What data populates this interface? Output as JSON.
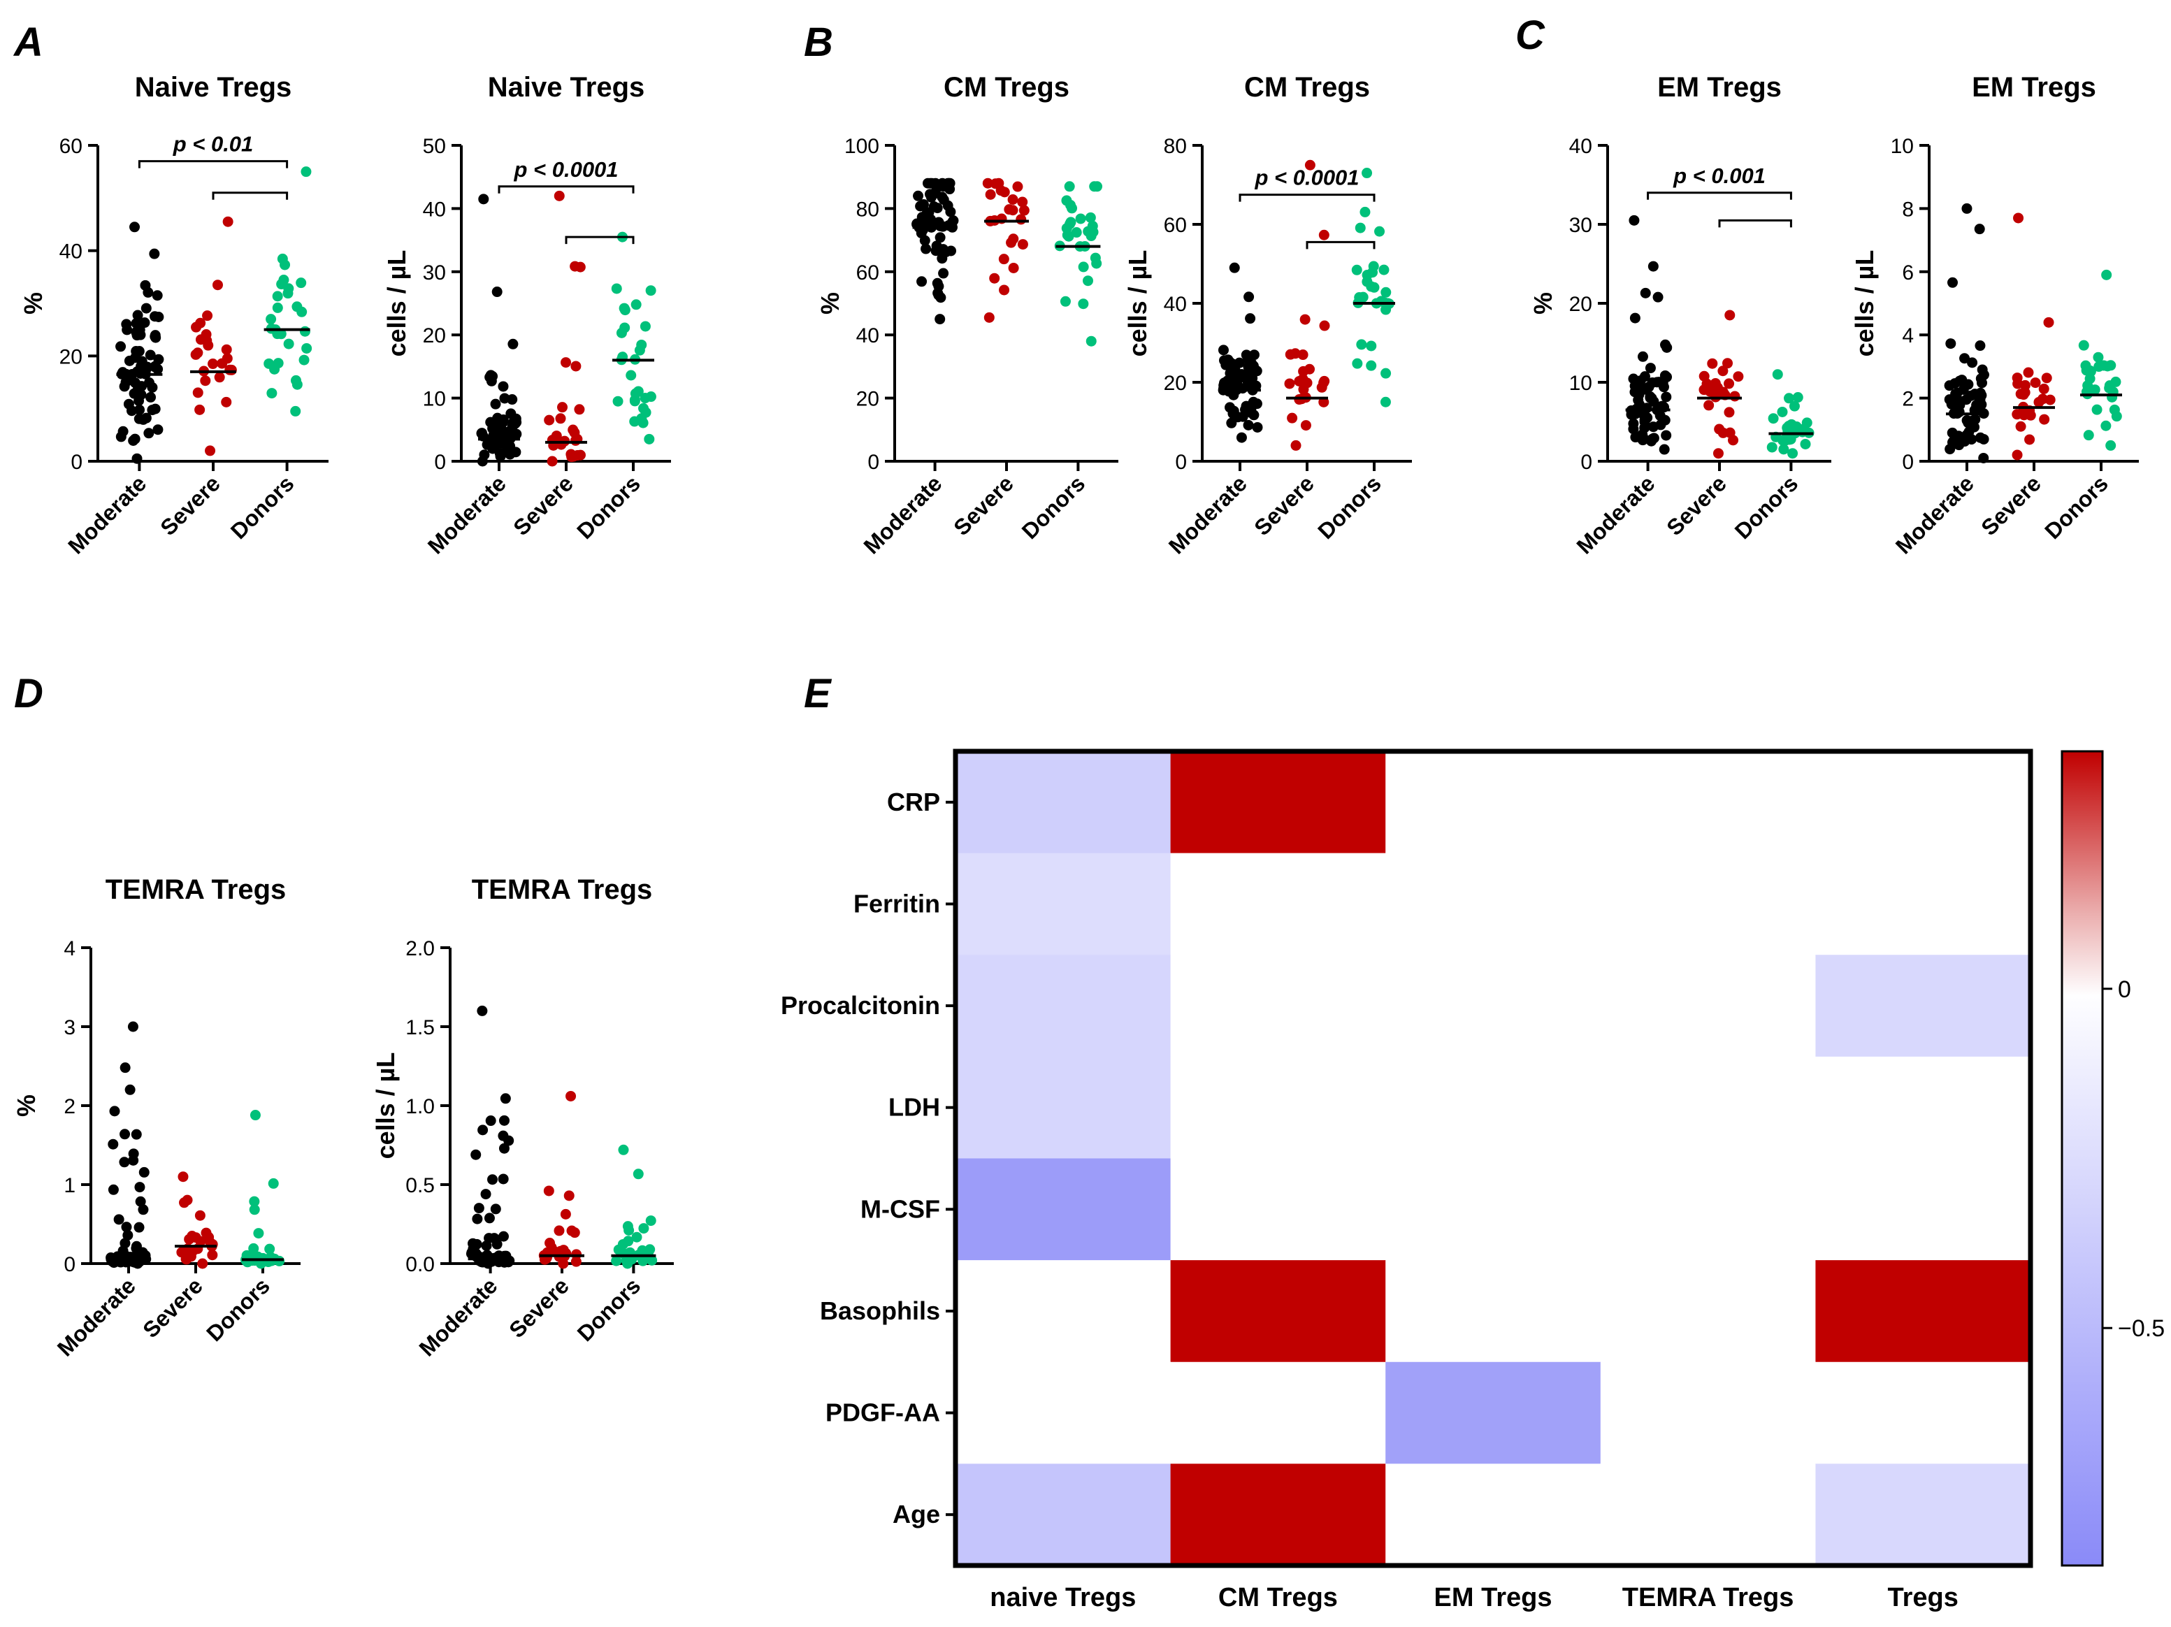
{
  "panel_labels": [
    "A",
    "B",
    "C",
    "D",
    "E"
  ],
  "colors": {
    "moderate": "#000000",
    "severe": "#c00000",
    "donors": "#00c07a",
    "heat_pos": "#c00000",
    "heat_neg": "#8a8af8",
    "heat_zero": "#ffffff"
  },
  "chart_data": [
    {
      "type": "scatter",
      "panel": "A",
      "title": "Naive Tregs",
      "ylabel": "%",
      "ylim": [
        0,
        60
      ],
      "yticks": [
        0,
        20,
        40,
        60
      ],
      "categories": [
        "Moderate",
        "Severe",
        "Donors"
      ],
      "series": [
        {
          "name": "Moderate",
          "median": 16.5,
          "min": 0.5,
          "max": 44.5,
          "n": 70
        },
        {
          "name": "Severe",
          "median": 17,
          "min": 2,
          "max": 45.5,
          "n": 24
        },
        {
          "name": "Donors",
          "median": 25,
          "min": 9.5,
          "max": 55,
          "n": 28
        }
      ],
      "brackets": [
        {
          "from": 0,
          "to": 2,
          "y": 57,
          "label": "p < 0.01"
        },
        {
          "from": 1,
          "to": 2,
          "y": 51,
          "label": ""
        }
      ]
    },
    {
      "type": "scatter",
      "panel": "A",
      "title": "Naive Tregs",
      "ylabel": "cells / µL",
      "ylim": [
        0,
        50
      ],
      "yticks": [
        0,
        10,
        20,
        30,
        40,
        50
      ],
      "categories": [
        "Moderate",
        "Severe",
        "Donors"
      ],
      "series": [
        {
          "name": "Moderate",
          "median": 3.5,
          "min": 0,
          "max": 41.5,
          "n": 70
        },
        {
          "name": "Severe",
          "median": 3,
          "min": 0,
          "max": 42,
          "n": 24
        },
        {
          "name": "Donors",
          "median": 16,
          "min": 3.5,
          "max": 35.5,
          "n": 28
        }
      ],
      "brackets": [
        {
          "from": 0,
          "to": 2,
          "y": 43.5,
          "label": "p < 0.0001"
        },
        {
          "from": 1,
          "to": 2,
          "y": 35.5,
          "label": ""
        }
      ]
    },
    {
      "type": "scatter",
      "panel": "B",
      "title": "CM Tregs",
      "ylabel": "%",
      "ylim": [
        0,
        100
      ],
      "yticks": [
        0,
        20,
        40,
        60,
        80,
        100
      ],
      "categories": [
        "Moderate",
        "Severe",
        "Donors"
      ],
      "series": [
        {
          "name": "Moderate",
          "median": 74,
          "min": 45,
          "max": 88,
          "n": 70
        },
        {
          "name": "Severe",
          "median": 76,
          "min": 45.5,
          "max": 88,
          "n": 24
        },
        {
          "name": "Donors",
          "median": 68,
          "min": 38,
          "max": 87,
          "n": 28
        }
      ],
      "brackets": []
    },
    {
      "type": "scatter",
      "panel": "B",
      "title": "CM Tregs",
      "ylabel": "cells / µL",
      "ylim": [
        0,
        80
      ],
      "yticks": [
        0,
        20,
        40,
        60,
        80
      ],
      "categories": [
        "Moderate",
        "Severe",
        "Donors"
      ],
      "series": [
        {
          "name": "Moderate",
          "median": 18,
          "min": 6,
          "max": 49,
          "n": 70
        },
        {
          "name": "Severe",
          "median": 16,
          "min": 4,
          "max": 75,
          "n": 24
        },
        {
          "name": "Donors",
          "median": 40,
          "min": 15,
          "max": 73,
          "n": 28
        }
      ],
      "brackets": [
        {
          "from": 0,
          "to": 2,
          "y": 67.5,
          "label": "p < 0.0001"
        },
        {
          "from": 1,
          "to": 2,
          "y": 55.5,
          "label": ""
        }
      ]
    },
    {
      "type": "scatter",
      "panel": "C",
      "title": "EM Tregs",
      "ylabel": "%",
      "ylim": [
        0,
        40
      ],
      "yticks": [
        0,
        10,
        20,
        30,
        40
      ],
      "categories": [
        "Moderate",
        "Severe",
        "Donors"
      ],
      "series": [
        {
          "name": "Moderate",
          "median": 6.5,
          "min": 1.5,
          "max": 30.5,
          "n": 70
        },
        {
          "name": "Severe",
          "median": 8,
          "min": 1,
          "max": 18.5,
          "n": 24
        },
        {
          "name": "Donors",
          "median": 3.5,
          "min": 1,
          "max": 11,
          "n": 28
        }
      ],
      "brackets": [
        {
          "from": 0,
          "to": 2,
          "y": 34,
          "label": "p < 0.001"
        },
        {
          "from": 1,
          "to": 2,
          "y": 30.5,
          "label": ""
        }
      ]
    },
    {
      "type": "scatter",
      "panel": "C",
      "title": "EM Tregs",
      "ylabel": "cells / µL",
      "ylim": [
        0,
        10
      ],
      "yticks": [
        0,
        2,
        4,
        6,
        8,
        10
      ],
      "categories": [
        "Moderate",
        "Severe",
        "Donors"
      ],
      "series": [
        {
          "name": "Moderate",
          "median": 1.5,
          "min": 0.1,
          "max": 8,
          "n": 70
        },
        {
          "name": "Severe",
          "median": 1.7,
          "min": 0.2,
          "max": 7.7,
          "n": 24
        },
        {
          "name": "Donors",
          "median": 2.1,
          "min": 0.5,
          "max": 5.9,
          "n": 28
        }
      ],
      "brackets": []
    },
    {
      "type": "scatter",
      "panel": "D",
      "title": "TEMRA Tregs",
      "ylabel": "%",
      "ylim": [
        0,
        4
      ],
      "yticks": [
        0,
        1,
        2,
        3,
        4
      ],
      "categories": [
        "Moderate",
        "Severe",
        "Donors"
      ],
      "series": [
        {
          "name": "Moderate",
          "median": 0.05,
          "min": 0,
          "max": 3,
          "n": 70
        },
        {
          "name": "Severe",
          "median": 0.22,
          "min": 0,
          "max": 1.1,
          "n": 24
        },
        {
          "name": "Donors",
          "median": 0.05,
          "min": 0,
          "max": 1.88,
          "n": 28
        }
      ],
      "brackets": []
    },
    {
      "type": "scatter",
      "panel": "D",
      "title": "TEMRA Tregs",
      "ylabel": "cells / µL",
      "ylim": [
        0,
        2
      ],
      "yticks": [
        "0.0",
        "0.5",
        "1.0",
        "1.5",
        "2.0"
      ],
      "categories": [
        "Moderate",
        "Severe",
        "Donors"
      ],
      "series": [
        {
          "name": "Moderate",
          "median": 0.03,
          "min": 0,
          "max": 1.6,
          "n": 70
        },
        {
          "name": "Severe",
          "median": 0.05,
          "min": 0,
          "max": 1.06,
          "n": 24
        },
        {
          "name": "Donors",
          "median": 0.05,
          "min": 0,
          "max": 0.72,
          "n": 28
        }
      ],
      "brackets": []
    },
    {
      "type": "heatmap",
      "panel": "E",
      "rows": [
        "CRP",
        "Ferritin",
        "Procalcitonin",
        "LDH",
        "M-CSF",
        "Basophils",
        "PDGF-AA",
        "Age"
      ],
      "columns": [
        "naive Tregs",
        "CM Tregs",
        "EM Tregs",
        "TEMRA Tregs",
        "Tregs"
      ],
      "values": [
        [
          -0.35,
          0.65,
          0,
          0,
          0
        ],
        [
          -0.25,
          0,
          0,
          0,
          0
        ],
        [
          -0.3,
          0,
          0,
          0,
          -0.28
        ],
        [
          -0.3,
          0,
          0,
          0,
          0
        ],
        [
          -0.72,
          0,
          0,
          0,
          0
        ],
        [
          0,
          0.65,
          0,
          0,
          0.65
        ],
        [
          0,
          0,
          -0.68,
          0,
          0
        ],
        [
          -0.42,
          0.78,
          0,
          0,
          -0.28
        ]
      ],
      "colorbar": {
        "min": -0.85,
        "max": 0.35,
        "ticks": [
          0,
          -0.5
        ],
        "tick_labels": [
          "0",
          "−0.5"
        ]
      }
    }
  ]
}
